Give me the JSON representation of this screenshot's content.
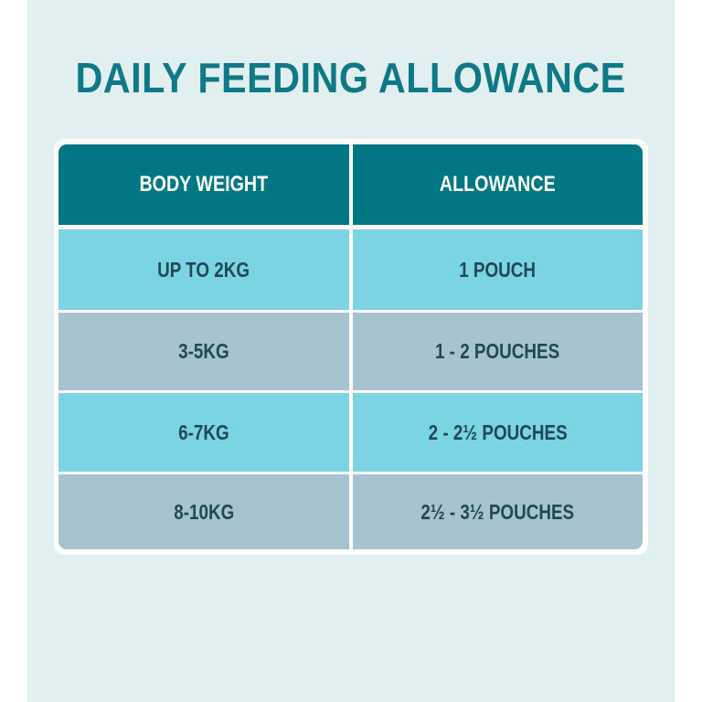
{
  "title": "DAILY FEEDING ALLOWANCE",
  "colors": {
    "header": "#007782",
    "row_light": "#7bd4e3",
    "row_gray": "#a7c3cf",
    "title": "#0f7a85",
    "background": "#e1eff0"
  },
  "table": {
    "headers": [
      "BODY WEIGHT",
      "ALLOWANCE"
    ],
    "rows": [
      [
        "UP TO 2KG",
        "1 POUCH"
      ],
      [
        "3-5KG",
        "1 - 2 POUCHES"
      ],
      [
        "6-7KG",
        "2 - 2½ POUCHES"
      ],
      [
        "8-10KG",
        "2½ - 3½ POUCHES"
      ]
    ]
  }
}
